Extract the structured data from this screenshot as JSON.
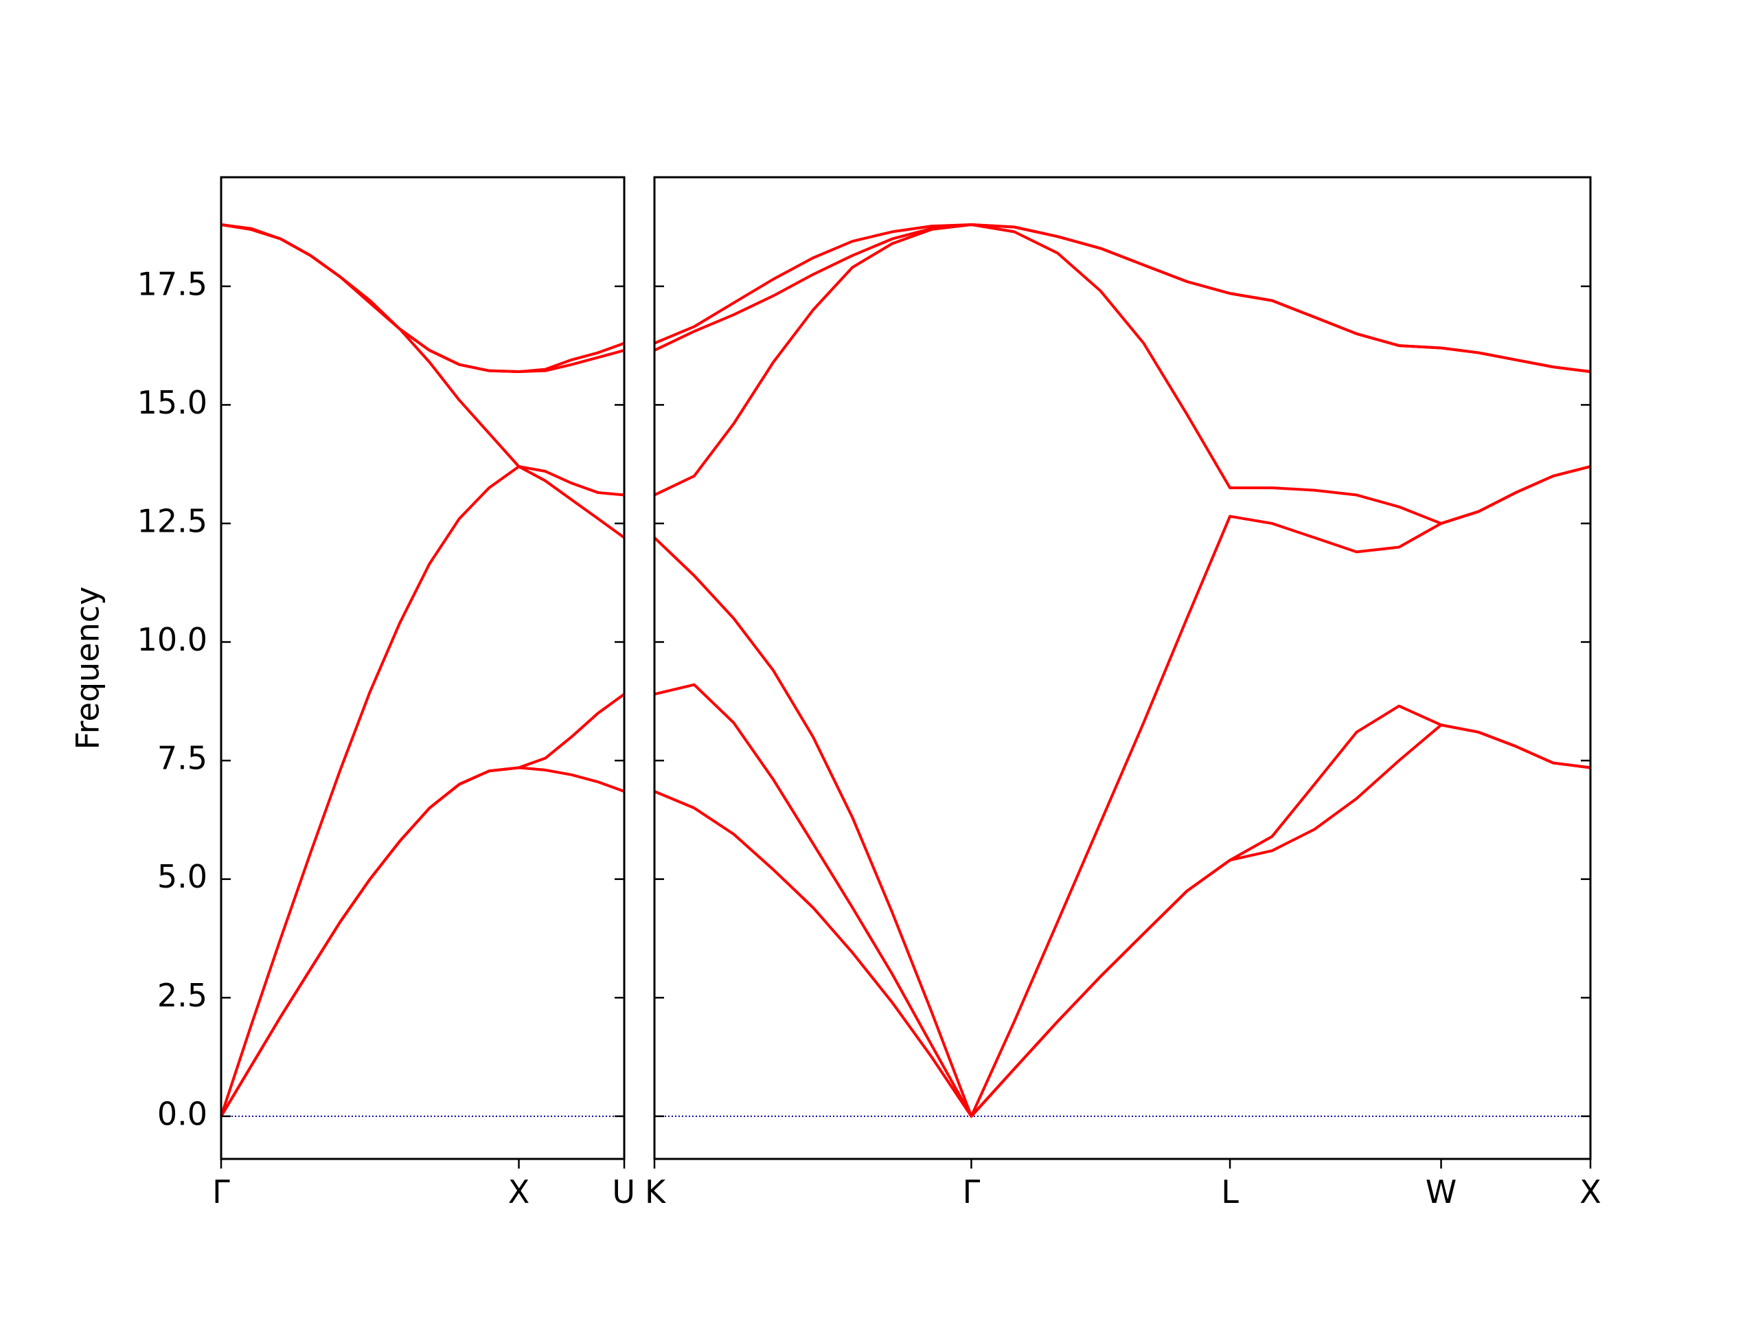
{
  "chart_data": [
    {
      "type": "line",
      "ylabel": "Frequency",
      "xlim": [
        0,
        1.354
      ],
      "ylim": [
        -0.9,
        19.8
      ],
      "xticks": [
        {
          "value": 0,
          "label": "Γ"
        },
        {
          "value": 1.0,
          "label": "X"
        },
        {
          "value": 1.354,
          "label": "U"
        }
      ],
      "yticks": [
        {
          "value": 0,
          "label": "0.0"
        },
        {
          "value": 2.5,
          "label": "2.5"
        },
        {
          "value": 5,
          "label": "5.0"
        },
        {
          "value": 7.5,
          "label": "7.5"
        },
        {
          "value": 10,
          "label": "10.0"
        },
        {
          "value": 12.5,
          "label": "12.5"
        },
        {
          "value": 15,
          "label": "15.0"
        },
        {
          "value": 17.5,
          "label": "17.5"
        }
      ],
      "show_ytick_labels": true,
      "hline": 0,
      "hline_color": "#0000aa",
      "x": [
        0,
        0.1,
        0.2,
        0.3,
        0.4,
        0.5,
        0.6,
        0.7,
        0.8,
        0.9,
        1.0,
        1.089,
        1.177,
        1.266,
        1.354
      ],
      "series": [
        {
          "color": "#ff0000",
          "values": [
            0,
            1.05,
            2.1,
            3.1,
            4.1,
            5.0,
            5.8,
            6.5,
            7.0,
            7.28,
            7.35,
            7.3,
            7.2,
            7.05,
            6.85
          ]
        },
        {
          "color": "#ff0000",
          "values": [
            0,
            1.05,
            2.1,
            3.1,
            4.1,
            5.0,
            5.8,
            6.5,
            7.0,
            7.28,
            7.35,
            7.55,
            8.0,
            8.5,
            8.9
          ]
        },
        {
          "color": "#ff0000",
          "values": [
            0,
            1.9,
            3.75,
            5.55,
            7.3,
            8.95,
            10.4,
            11.65,
            12.6,
            13.25,
            13.7,
            13.6,
            13.35,
            13.15,
            13.1
          ]
        },
        {
          "color": "#ff0000",
          "values": [
            18.8,
            18.72,
            18.5,
            18.15,
            17.7,
            17.2,
            16.6,
            15.9,
            15.1,
            14.4,
            13.7,
            13.4,
            13.0,
            12.6,
            12.2
          ]
        },
        {
          "color": "#ff0000",
          "values": [
            18.8,
            18.7,
            18.5,
            18.15,
            17.7,
            17.15,
            16.6,
            16.15,
            15.85,
            15.72,
            15.7,
            15.72,
            15.85,
            16.0,
            16.15
          ]
        },
        {
          "color": "#ff0000",
          "values": [
            18.8,
            18.7,
            18.5,
            18.15,
            17.7,
            17.15,
            16.6,
            16.15,
            15.85,
            15.72,
            15.7,
            15.75,
            15.95,
            16.1,
            16.3
          ]
        }
      ]
    },
    {
      "type": "line",
      "xlim": [
        1.354,
        4.488
      ],
      "ylim": [
        -0.9,
        19.8
      ],
      "xticks": [
        {
          "value": 1.354,
          "label": "K"
        },
        {
          "value": 2.415,
          "label": "Γ"
        },
        {
          "value": 3.281,
          "label": "L"
        },
        {
          "value": 3.988,
          "label": "W"
        },
        {
          "value": 4.488,
          "label": "X"
        }
      ],
      "yticks": [
        0,
        2.5,
        5,
        7.5,
        10,
        12.5,
        15,
        17.5
      ],
      "show_ytick_labels": false,
      "hline": 0,
      "hline_color": "#0000aa",
      "x": [
        1.354,
        1.487,
        1.619,
        1.752,
        1.885,
        2.017,
        2.15,
        2.282,
        2.415,
        2.559,
        2.704,
        2.848,
        2.992,
        3.137,
        3.281,
        3.422,
        3.564,
        3.705,
        3.847,
        3.988,
        4.113,
        4.238,
        4.363,
        4.488
      ],
      "series": [
        {
          "color": "#ff0000",
          "values": [
            6.85,
            6.5,
            5.95,
            5.2,
            4.4,
            3.45,
            2.4,
            1.25,
            0,
            1.0,
            2.0,
            2.95,
            3.85,
            4.75,
            5.4,
            5.6,
            6.05,
            6.7,
            7.5,
            8.25,
            8.1,
            7.8,
            7.45,
            7.35
          ]
        },
        {
          "color": "#ff0000",
          "values": [
            8.9,
            9.1,
            8.3,
            7.1,
            5.75,
            4.4,
            3.0,
            1.5,
            0,
            1.0,
            2.0,
            2.95,
            3.85,
            4.75,
            5.4,
            5.9,
            7.0,
            8.1,
            8.65,
            8.25,
            8.1,
            7.8,
            7.45,
            7.35
          ]
        },
        {
          "color": "#ff0000",
          "values": [
            12.2,
            11.4,
            10.5,
            9.4,
            8.0,
            6.3,
            4.3,
            2.2,
            0,
            2.0,
            4.1,
            6.2,
            8.3,
            10.5,
            12.65,
            12.5,
            12.2,
            11.9,
            12.0,
            12.5,
            12.75,
            13.15,
            13.5,
            13.7
          ]
        },
        {
          "color": "#ff0000",
          "values": [
            13.1,
            13.5,
            14.6,
            15.9,
            17.0,
            17.9,
            18.4,
            18.7,
            18.8,
            18.65,
            18.2,
            17.4,
            16.3,
            14.8,
            13.25,
            13.25,
            13.2,
            13.1,
            12.85,
            12.5,
            12.75,
            13.15,
            13.5,
            13.7
          ]
        },
        {
          "color": "#ff0000",
          "values": [
            16.3,
            16.65,
            17.15,
            17.65,
            18.1,
            18.45,
            18.65,
            18.77,
            18.8,
            18.75,
            18.55,
            18.3,
            17.95,
            17.6,
            17.35,
            17.2,
            16.85,
            16.5,
            16.25,
            16.2,
            16.1,
            15.95,
            15.8,
            15.7
          ]
        },
        {
          "color": "#ff0000",
          "values": [
            16.15,
            16.55,
            16.9,
            17.3,
            17.75,
            18.15,
            18.5,
            18.72,
            18.8,
            18.75,
            18.55,
            18.3,
            17.95,
            17.6,
            17.35,
            17.2,
            16.85,
            16.5,
            16.25,
            16.2,
            16.1,
            15.95,
            15.8,
            15.7
          ]
        }
      ]
    }
  ]
}
